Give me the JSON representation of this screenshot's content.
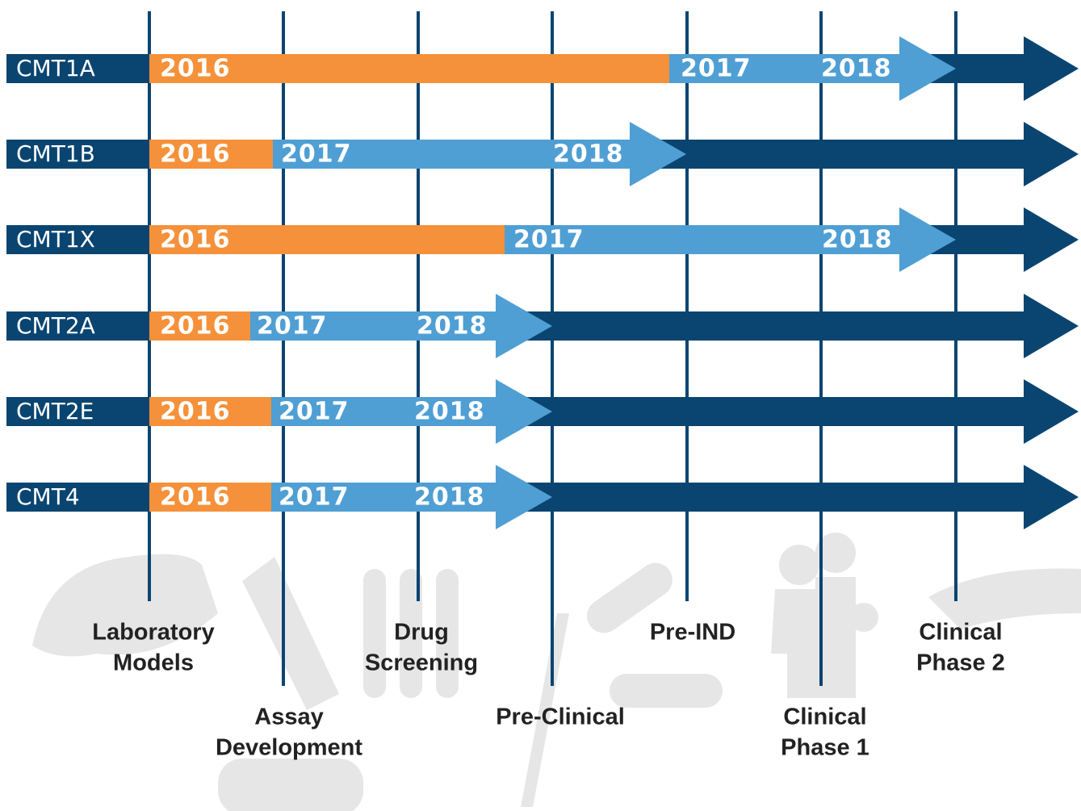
{
  "rows": [
    {
      "label": "CMT1A",
      "years": [
        "2016",
        "2017",
        "2018"
      ]
    },
    {
      "label": "CMT1B",
      "years": [
        "2016",
        "2017",
        "2018"
      ]
    },
    {
      "label": "CMT1X",
      "years": [
        "2016",
        "2017",
        "2018"
      ]
    },
    {
      "label": "CMT2A",
      "years": [
        "2016",
        "2017",
        "2018"
      ]
    },
    {
      "label": "CMT2E",
      "years": [
        "2016",
        "2017",
        "2018"
      ]
    },
    {
      "label": "CMT4",
      "years": [
        "2016",
        "2017",
        "2018"
      ]
    }
  ],
  "stages": [
    {
      "lines": [
        "Laboratory",
        "Models"
      ]
    },
    {
      "lines": [
        "Assay",
        "Development"
      ]
    },
    {
      "lines": [
        "Drug",
        "Screening"
      ]
    },
    {
      "lines": [
        "Pre-Clinical"
      ]
    },
    {
      "lines": [
        "Pre-IND"
      ]
    },
    {
      "lines": [
        "Clinical",
        "Phase 1"
      ]
    },
    {
      "lines": [
        "Clinical",
        "Phase 2"
      ]
    }
  ]
}
